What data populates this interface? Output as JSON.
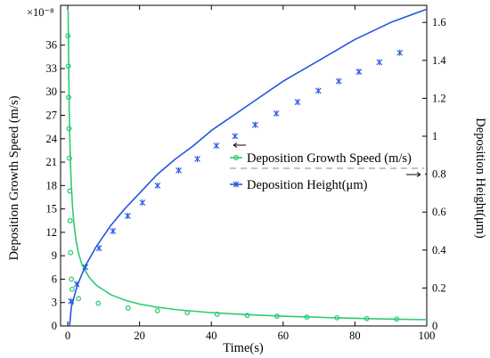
{
  "chart_data": {
    "type": "line",
    "xlabel": "Time(s)",
    "ylabel_left": "Deposition Growth Speed (m/s)",
    "ylabel_right": "Deposition Height(μm)",
    "left_scale_label": "×10⁻⁸",
    "xlim": [
      -2,
      100
    ],
    "ylim_left": [
      0,
      41.1
    ],
    "ylim_right": [
      0,
      1.69
    ],
    "x_ticks": [
      "0",
      "20",
      "40",
      "60",
      "80",
      "100"
    ],
    "y_left_ticks": [
      "0",
      "3",
      "6",
      "9",
      "12",
      "15",
      "18",
      "21",
      "24",
      "27",
      "30",
      "33",
      "36"
    ],
    "y_right_ticks": [
      "0",
      "0.2",
      "0.4",
      "0.6",
      "0.8",
      "1",
      "1.2",
      "1.4",
      "1.6"
    ],
    "legend": {
      "placement": "right-middle"
    },
    "series": [
      {
        "name": "Deposition Growth Speed (m/s)",
        "axis": "left",
        "color": "#2ecc71",
        "marker": "circle",
        "x": [
          0.1,
          0.2,
          0.3,
          0.4,
          0.6,
          0.8,
          1.0,
          1.3,
          1.7,
          2.3,
          3,
          4,
          6,
          8,
          12,
          16,
          20,
          25,
          30,
          40,
          50,
          60,
          70,
          80,
          90,
          100
        ],
        "y": [
          40.5,
          36.0,
          31.7,
          28.1,
          23.5,
          20.3,
          18.0,
          15.5,
          13.2,
          11.0,
          9.3,
          7.8,
          6.2,
          5.2,
          4.0,
          3.3,
          2.8,
          2.4,
          2.1,
          1.7,
          1.45,
          1.25,
          1.1,
          0.98,
          0.88,
          0.8
        ],
        "markers_x": [
          0.05,
          0.15,
          0.25,
          0.35,
          0.45,
          0.55,
          0.65,
          0.8,
          1.0,
          1.2,
          3,
          8.5,
          16.8,
          25,
          33.3,
          41.6,
          50,
          58.3,
          66.6,
          75,
          83.3,
          91.6
        ],
        "markers_y": [
          37.2,
          33.3,
          29.3,
          25.3,
          21.5,
          17.3,
          13.5,
          9.4,
          6.0,
          4.7,
          3.5,
          2.9,
          2.3,
          1.95,
          1.7,
          1.5,
          1.35,
          1.25,
          1.13,
          1.05,
          0.95,
          0.88
        ]
      },
      {
        "name": "Deposition Height(μm)",
        "axis": "right",
        "color": "#2456e0",
        "marker": "star",
        "x": [
          0.5,
          1,
          2,
          3,
          5,
          8,
          12,
          16,
          20,
          25,
          30,
          35,
          40,
          50,
          60,
          70,
          80,
          90,
          100
        ],
        "y": [
          0.0,
          0.1,
          0.17,
          0.23,
          0.32,
          0.42,
          0.53,
          0.62,
          0.7,
          0.8,
          0.88,
          0.95,
          1.03,
          1.16,
          1.29,
          1.4,
          1.51,
          1.6,
          1.67
        ],
        "markers_x": [
          0.9,
          2.5,
          4.9,
          8.7,
          12.6,
          16.7,
          20.8,
          25,
          30.9,
          36.1,
          41.4,
          46.6,
          52.2,
          58.1,
          64,
          69.8,
          75.5,
          81.1,
          86.8,
          92.5
        ],
        "markers_y": [
          0.13,
          0.22,
          0.31,
          0.41,
          0.5,
          0.58,
          0.65,
          0.74,
          0.82,
          0.88,
          0.95,
          1.0,
          1.06,
          1.12,
          1.18,
          1.24,
          1.29,
          1.34,
          1.39,
          1.44
        ]
      }
    ]
  }
}
